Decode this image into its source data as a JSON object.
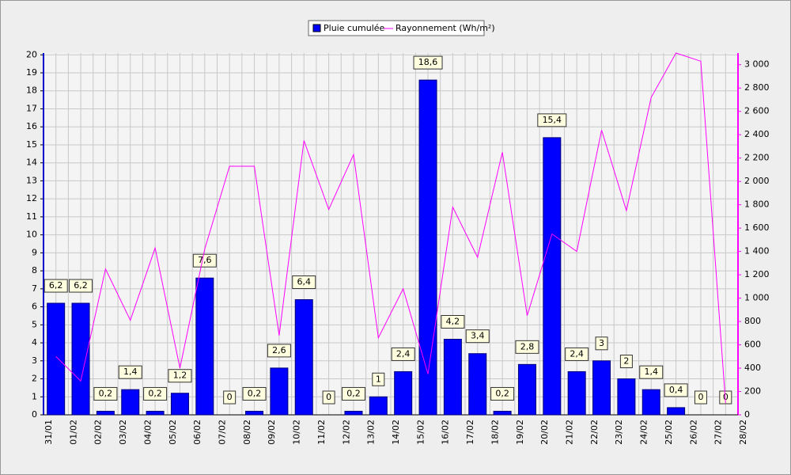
{
  "chart_data": {
    "type": "bar",
    "x_tick_labels": [
      "31/01",
      "01/02",
      "02/02",
      "03/02",
      "04/02",
      "05/02",
      "06/02",
      "07/02",
      "08/02",
      "09/02",
      "10/02",
      "11/02",
      "12/02",
      "13/02",
      "14/02",
      "15/02",
      "16/02",
      "17/02",
      "18/02",
      "19/02",
      "20/02",
      "21/02",
      "22/02",
      "23/02",
      "24/02",
      "25/02",
      "26/02",
      "27/02",
      "28/02"
    ],
    "series": [
      {
        "name": "Pluie cumulée",
        "color": "#0000ff",
        "type": "bar",
        "values": [
          6.2,
          6.2,
          0.2,
          1.4,
          0.2,
          1.2,
          7.6,
          0,
          0.2,
          2.6,
          6.4,
          0,
          0.2,
          1,
          2.4,
          18.6,
          4.2,
          3.4,
          0.2,
          2.8,
          15.4,
          2.4,
          3,
          2,
          1.4,
          0.4,
          0,
          0
        ],
        "value_labels": [
          "6,2",
          "6,2",
          "0,2",
          "1,4",
          "0,2",
          "1,2",
          "7,6",
          "0",
          "0,2",
          "2,6",
          "6,4",
          "0",
          "0,2",
          "1",
          "2,4",
          "18,6",
          "4,2",
          "3,4",
          "0,2",
          "2,8",
          "15,4",
          "2,4",
          "3",
          "2",
          "1,4",
          "0,4",
          "0",
          "0"
        ]
      },
      {
        "name": "Rayonnement (Wh/m²)",
        "color": "#ff00ff",
        "type": "line",
        "axis": "y2",
        "values": [
          500,
          290,
          1250,
          810,
          1430,
          400,
          1420,
          2130,
          2130,
          680,
          2350,
          1760,
          2230,
          660,
          1080,
          350,
          1780,
          1350,
          2250,
          850,
          1550,
          1400,
          2440,
          1750,
          2720,
          3100,
          3030,
          100
        ]
      }
    ],
    "ylim": [
      0,
      20.1
    ],
    "yticks": [
      0,
      1,
      2,
      3,
      4,
      5,
      6,
      7,
      8,
      9,
      10,
      11,
      12,
      13,
      14,
      15,
      16,
      17,
      18,
      19,
      20
    ],
    "y2lim": [
      0,
      3100
    ],
    "y2ticks": [
      0,
      200,
      400,
      600,
      800,
      {
        "value": 1000,
        "label": "1 000"
      },
      {
        "value": 1200,
        "label": "1 200"
      },
      {
        "value": 1400,
        "label": "1 400"
      },
      {
        "value": 1600,
        "label": "1 600"
      },
      {
        "value": 1800,
        "label": "1 800"
      },
      {
        "value": 2000,
        "label": "2 000"
      },
      {
        "value": 2200,
        "label": "2 200"
      },
      {
        "value": 2400,
        "label": "2 400"
      },
      {
        "value": 2600,
        "label": "2 600"
      },
      {
        "value": 2800,
        "label": "2 800"
      },
      {
        "value": 3000,
        "label": "3 000"
      }
    ],
    "grid": true
  }
}
